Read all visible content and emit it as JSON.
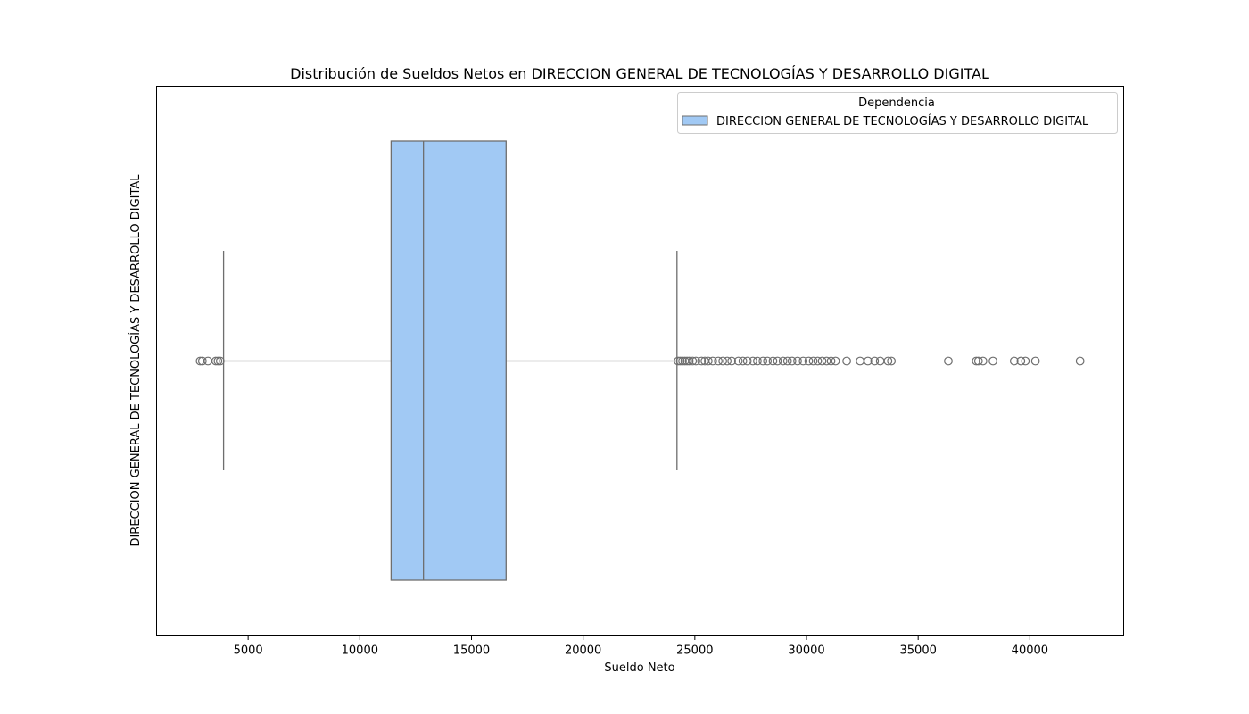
{
  "chart_data": {
    "type": "boxplot",
    "orientation": "horizontal",
    "title": "Distribución de Sueldos Netos en DIRECCION GENERAL DE TECNOLOGÍAS Y DESARROLLO DIGITAL",
    "xlabel": "Sueldo Neto",
    "ylabel": "DIRECCION GENERAL DE TECNOLOGÍAS Y DESARROLLO DIGITAL",
    "xlim": [
      900,
      44200
    ],
    "xticks": [
      5000,
      10000,
      15000,
      20000,
      25000,
      30000,
      35000,
      40000
    ],
    "legend": {
      "title": "Dependencia",
      "placement": "top-right",
      "entries": [
        "DIRECCION GENERAL DE TECNOLOGÍAS Y DESARROLLO DIGITAL"
      ]
    },
    "colors": {
      "box_fill": "#a1c9f4",
      "line": "#6e6e6e"
    },
    "grid": false,
    "series": [
      {
        "name": "DIRECCION GENERAL DE TECNOLOGÍAS Y DESARROLLO DIGITAL",
        "whisker_low": 3900,
        "q1": 11400,
        "median": 12850,
        "q3": 16550,
        "whisker_high": 24200,
        "outliers": [
          2850,
          2950,
          3200,
          3550,
          3650,
          3750,
          24250,
          24350,
          24450,
          24550,
          24650,
          24750,
          24900,
          25050,
          25300,
          25450,
          25600,
          25800,
          26050,
          26250,
          26450,
          26650,
          26950,
          27150,
          27350,
          27600,
          27800,
          28050,
          28250,
          28500,
          28700,
          28950,
          29150,
          29350,
          29600,
          29850,
          30100,
          30300,
          30500,
          30700,
          30900,
          31100,
          31300,
          31800,
          32400,
          32750,
          33050,
          33300,
          33650,
          33800,
          36350,
          37600,
          37700,
          37900,
          38350,
          39300,
          39600,
          39800,
          40250,
          42250
        ]
      }
    ]
  }
}
